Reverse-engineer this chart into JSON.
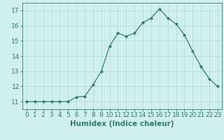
{
  "x": [
    0,
    1,
    2,
    3,
    4,
    5,
    6,
    7,
    8,
    9,
    10,
    11,
    12,
    13,
    14,
    15,
    16,
    17,
    18,
    19,
    20,
    21,
    22,
    23
  ],
  "y": [
    11.0,
    11.0,
    11.0,
    11.0,
    11.0,
    11.0,
    11.3,
    11.35,
    12.1,
    13.0,
    14.65,
    15.5,
    15.3,
    15.5,
    16.2,
    16.5,
    17.1,
    16.5,
    16.1,
    15.4,
    14.3,
    13.3,
    12.5,
    12.0
  ],
  "line_color": "#2e7d6e",
  "bg_color": "#cff0ee",
  "grid_color": "#b8dbd9",
  "xlabel": "Humidex (Indice chaleur)",
  "xlim": [
    -0.5,
    23.5
  ],
  "ylim": [
    10.5,
    17.5
  ],
  "yticks": [
    11,
    12,
    13,
    14,
    15,
    16,
    17
  ],
  "xticks": [
    0,
    1,
    2,
    3,
    4,
    5,
    6,
    7,
    8,
    9,
    10,
    11,
    12,
    13,
    14,
    15,
    16,
    17,
    18,
    19,
    20,
    21,
    22,
    23
  ],
  "tick_color": "#2e7d6e",
  "label_fontsize": 6.5,
  "xlabel_fontsize": 7.5
}
